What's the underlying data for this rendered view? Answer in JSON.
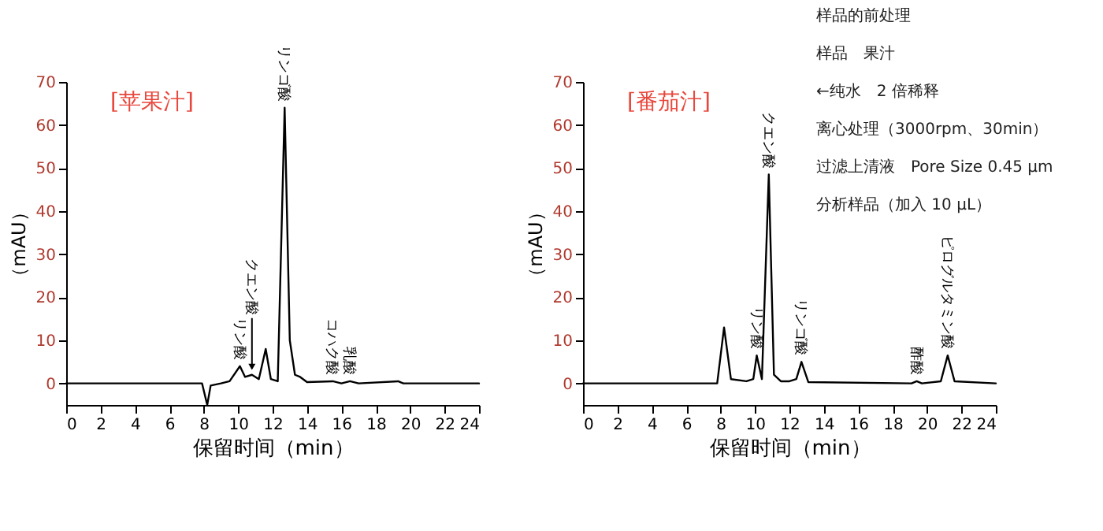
{
  "chart_data": [
    {
      "type": "line",
      "title": "[苹果汁]",
      "xlabel": "保留时间（min）",
      "ylabel": "（mAU）",
      "grid": false,
      "x": [
        0,
        4,
        7.9,
        8.2,
        8.4,
        9.0,
        9.5,
        10.1,
        10.4,
        10.8,
        11.2,
        11.6,
        11.9,
        12.3,
        12.7,
        13.0,
        13.3,
        13.6,
        14.0,
        15.5,
        16.0,
        16.5,
        17.0,
        19.3,
        19.6,
        24
      ],
      "series": [
        {
          "color": "#000000",
          "values": [
            0,
            0,
            0,
            -5,
            -0.5,
            0,
            0.5,
            4,
            1.5,
            2,
            1,
            8,
            1,
            0.5,
            64,
            10,
            2,
            1.5,
            0.3,
            0.5,
            0,
            0.5,
            0,
            0.5,
            0,
            0
          ]
        }
      ],
      "xlim": [
        0,
        24
      ],
      "ylim": [
        -5,
        70
      ],
      "xticks": [
        0,
        2,
        4,
        6,
        8,
        10,
        12,
        14,
        16,
        18,
        20,
        22,
        24
      ],
      "yticks": [
        0,
        10,
        20,
        30,
        40,
        50,
        60,
        70
      ],
      "annotations": [
        {
          "text": "リン酸",
          "x": 10.1,
          "y": 4
        },
        {
          "text": "クエン酸",
          "x": 10.8,
          "y": 2
        },
        {
          "text": "リンゴ酸",
          "x": 12.7,
          "y": 64
        },
        {
          "text": "コハク酸",
          "x": 15.5,
          "y": 0.5
        },
        {
          "text": "乳酸",
          "x": 16.5,
          "y": 0.5
        }
      ]
    },
    {
      "type": "line",
      "title": "[番茄汁]",
      "xlabel": "保留时间（min）",
      "ylabel": "（mAU）",
      "grid": false,
      "x": [
        0,
        4,
        7.8,
        8.2,
        8.6,
        9.5,
        9.9,
        10.1,
        10.4,
        10.8,
        11.1,
        11.5,
        12.0,
        12.4,
        12.7,
        13.1,
        19.1,
        19.4,
        19.7,
        20.8,
        21.2,
        21.6,
        24
      ],
      "series": [
        {
          "color": "#000000",
          "values": [
            0,
            0,
            0,
            13,
            1,
            0.5,
            1,
            6.5,
            1,
            48.5,
            2,
            0.5,
            0.5,
            1,
            5,
            0.3,
            0,
            0.5,
            0,
            0.5,
            6.5,
            0.5,
            0
          ]
        }
      ],
      "xlim": [
        0,
        24
      ],
      "ylim": [
        -5,
        70
      ],
      "xticks": [
        0,
        2,
        4,
        6,
        8,
        10,
        12,
        14,
        16,
        18,
        20,
        22,
        24
      ],
      "yticks": [
        0,
        10,
        20,
        30,
        40,
        50,
        60,
        70
      ],
      "annotations": [
        {
          "text": "リン酸",
          "x": 10.1,
          "y": 6.5
        },
        {
          "text": "クエン酸",
          "x": 10.8,
          "y": 48.5
        },
        {
          "text": "リンゴ酸",
          "x": 12.7,
          "y": 5
        },
        {
          "text": "酢酸",
          "x": 19.4,
          "y": 0.5
        },
        {
          "text": "ピログルタミン酸",
          "x": 21.2,
          "y": 6.5
        },
        "样品的前处理",
        "样品　果汁",
        "←纯水　2 倍稀释",
        "离心处理（3000rpm、30min）",
        "过滤上清液　Pore Size 0.45 μm",
        "分析样品（加入 10 μL）"
      ]
    }
  ]
}
